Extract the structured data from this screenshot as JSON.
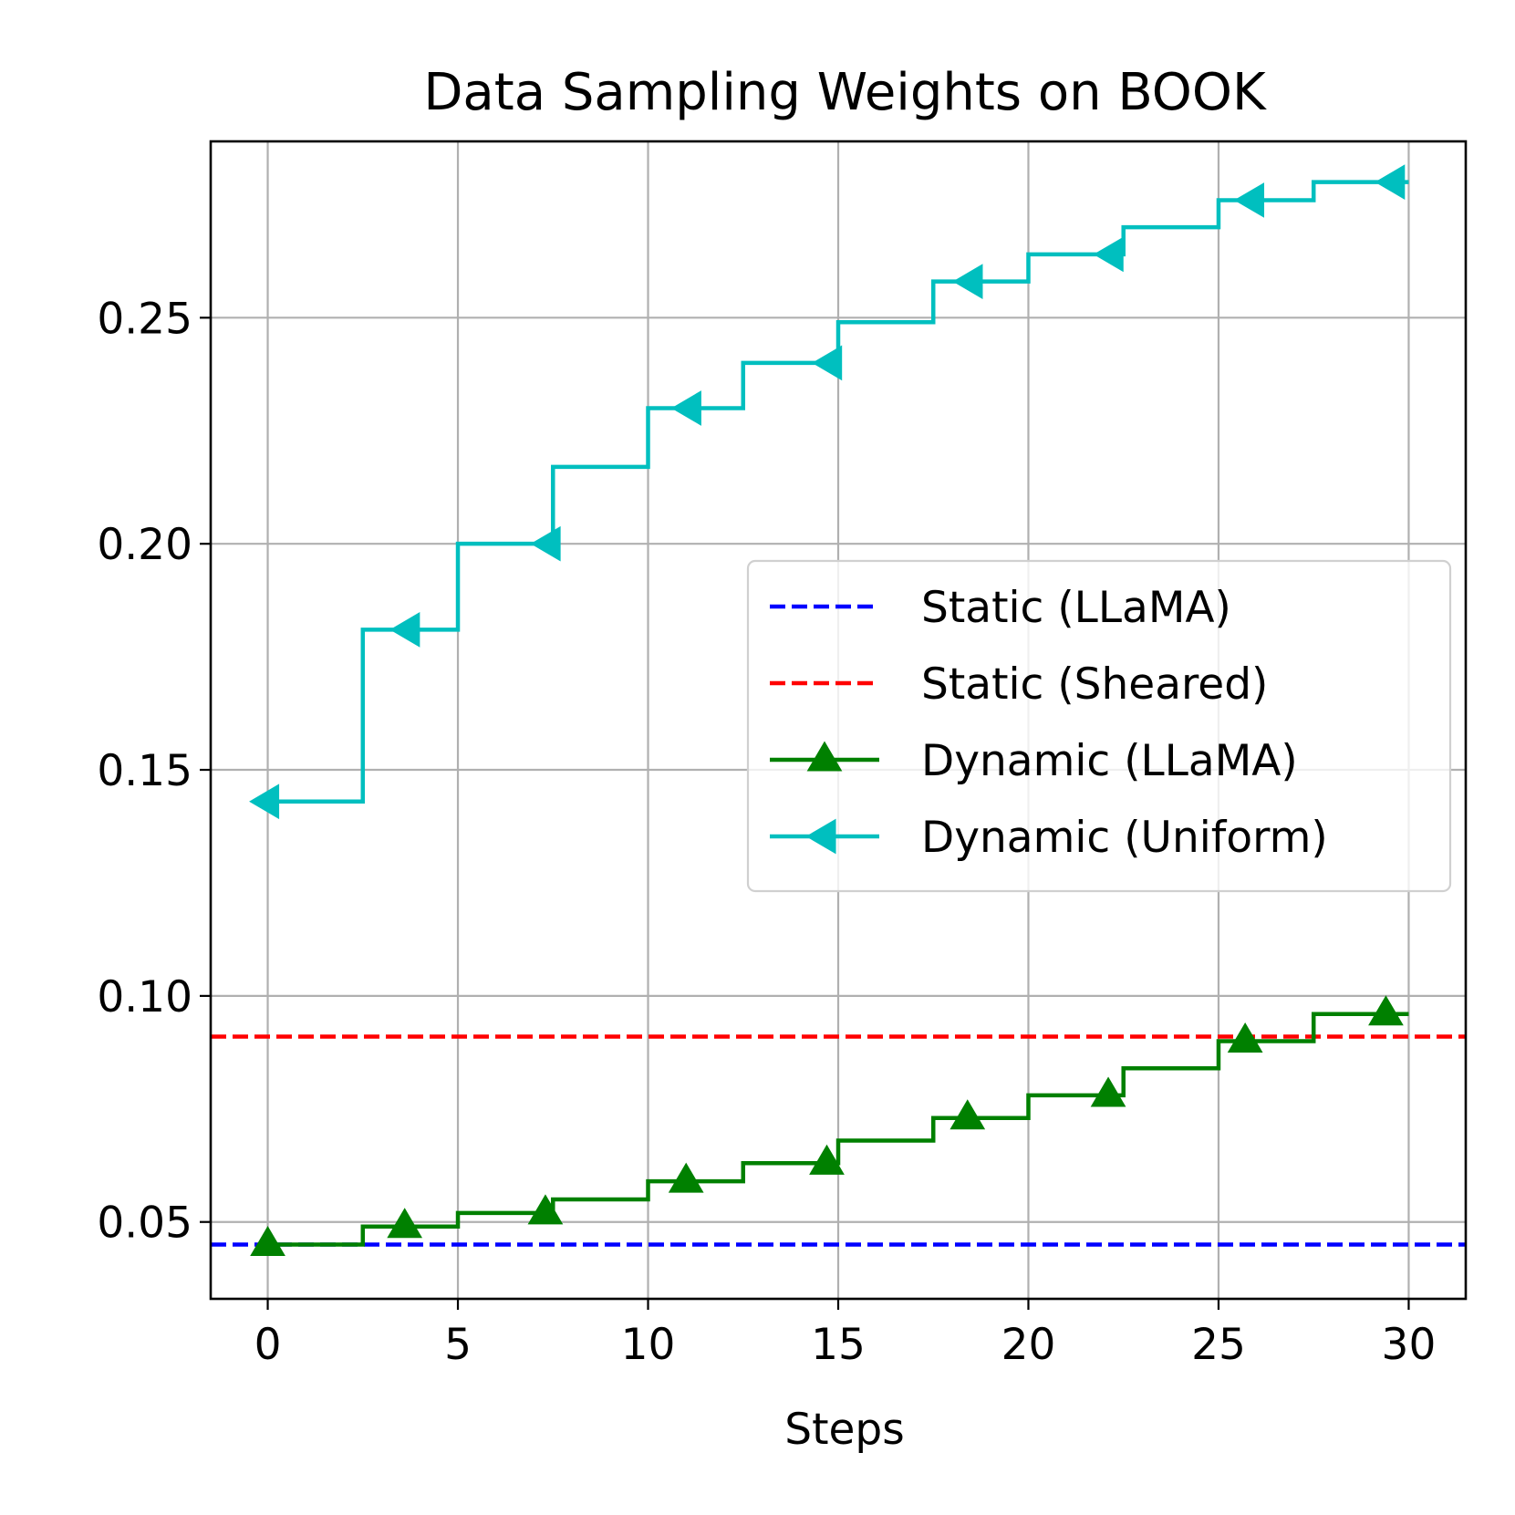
{
  "chart_data": {
    "type": "line",
    "title": "Data Sampling Weights on BOOK",
    "xlabel": "Steps",
    "ylabel": "",
    "xlim": [
      -1.5,
      31.5
    ],
    "ylim": [
      0.033,
      0.289
    ],
    "xticks": [
      0,
      5,
      10,
      15,
      20,
      25,
      30
    ],
    "xtick_labels": [
      "0",
      "5",
      "10",
      "15",
      "20",
      "25",
      "30"
    ],
    "yticks": [
      0.05,
      0.1,
      0.15,
      0.2,
      0.25
    ],
    "ytick_labels": [
      "0.05",
      "0.10",
      "0.15",
      "0.20",
      "0.25"
    ],
    "grid": true,
    "legend_position": "center-right",
    "series": [
      {
        "name": "Static (LLaMA)",
        "kind": "hline",
        "value": 0.045,
        "color": "#0000ff",
        "style": "dashed"
      },
      {
        "name": "Static (Sheared)",
        "kind": "hline",
        "value": 0.091,
        "color": "#ff0000",
        "style": "dashed"
      },
      {
        "name": "Dynamic (LLaMA)",
        "kind": "step",
        "color": "#008000",
        "marker": "triangle-up",
        "steps": [
          {
            "x": 0,
            "y": 0.045
          },
          {
            "x": 2.5,
            "y": 0.049
          },
          {
            "x": 5,
            "y": 0.052
          },
          {
            "x": 7.5,
            "y": 0.055
          },
          {
            "x": 10,
            "y": 0.059
          },
          {
            "x": 12.5,
            "y": 0.063
          },
          {
            "x": 15,
            "y": 0.068
          },
          {
            "x": 17.5,
            "y": 0.073
          },
          {
            "x": 20,
            "y": 0.078
          },
          {
            "x": 22.5,
            "y": 0.084
          },
          {
            "x": 25,
            "y": 0.09
          },
          {
            "x": 27.5,
            "y": 0.096
          }
        ],
        "end_x": 30,
        "markers": [
          {
            "x": 0,
            "y": 0.045
          },
          {
            "x": 3.6,
            "y": 0.049
          },
          {
            "x": 7.3,
            "y": 0.052
          },
          {
            "x": 11,
            "y": 0.059
          },
          {
            "x": 14.7,
            "y": 0.063
          },
          {
            "x": 18.4,
            "y": 0.073
          },
          {
            "x": 22.1,
            "y": 0.078
          },
          {
            "x": 25.7,
            "y": 0.09
          },
          {
            "x": 29.4,
            "y": 0.096
          }
        ]
      },
      {
        "name": "Dynamic (Uniform)",
        "kind": "step",
        "color": "#00bfbf",
        "marker": "triangle-left",
        "steps": [
          {
            "x": 0,
            "y": 0.143
          },
          {
            "x": 2.5,
            "y": 0.181
          },
          {
            "x": 5,
            "y": 0.2
          },
          {
            "x": 7.5,
            "y": 0.217
          },
          {
            "x": 10,
            "y": 0.23
          },
          {
            "x": 12.5,
            "y": 0.24
          },
          {
            "x": 15,
            "y": 0.249
          },
          {
            "x": 17.5,
            "y": 0.258
          },
          {
            "x": 20,
            "y": 0.264
          },
          {
            "x": 22.5,
            "y": 0.27
          },
          {
            "x": 25,
            "y": 0.276
          },
          {
            "x": 27.5,
            "y": 0.28
          }
        ],
        "end_x": 30,
        "markers": [
          {
            "x": 0,
            "y": 0.143
          },
          {
            "x": 3.7,
            "y": 0.181
          },
          {
            "x": 7.4,
            "y": 0.2
          },
          {
            "x": 11.1,
            "y": 0.23
          },
          {
            "x": 14.8,
            "y": 0.24
          },
          {
            "x": 18.5,
            "y": 0.258
          },
          {
            "x": 22.2,
            "y": 0.264
          },
          {
            "x": 25.9,
            "y": 0.276
          },
          {
            "x": 29.6,
            "y": 0.28
          }
        ]
      }
    ]
  }
}
